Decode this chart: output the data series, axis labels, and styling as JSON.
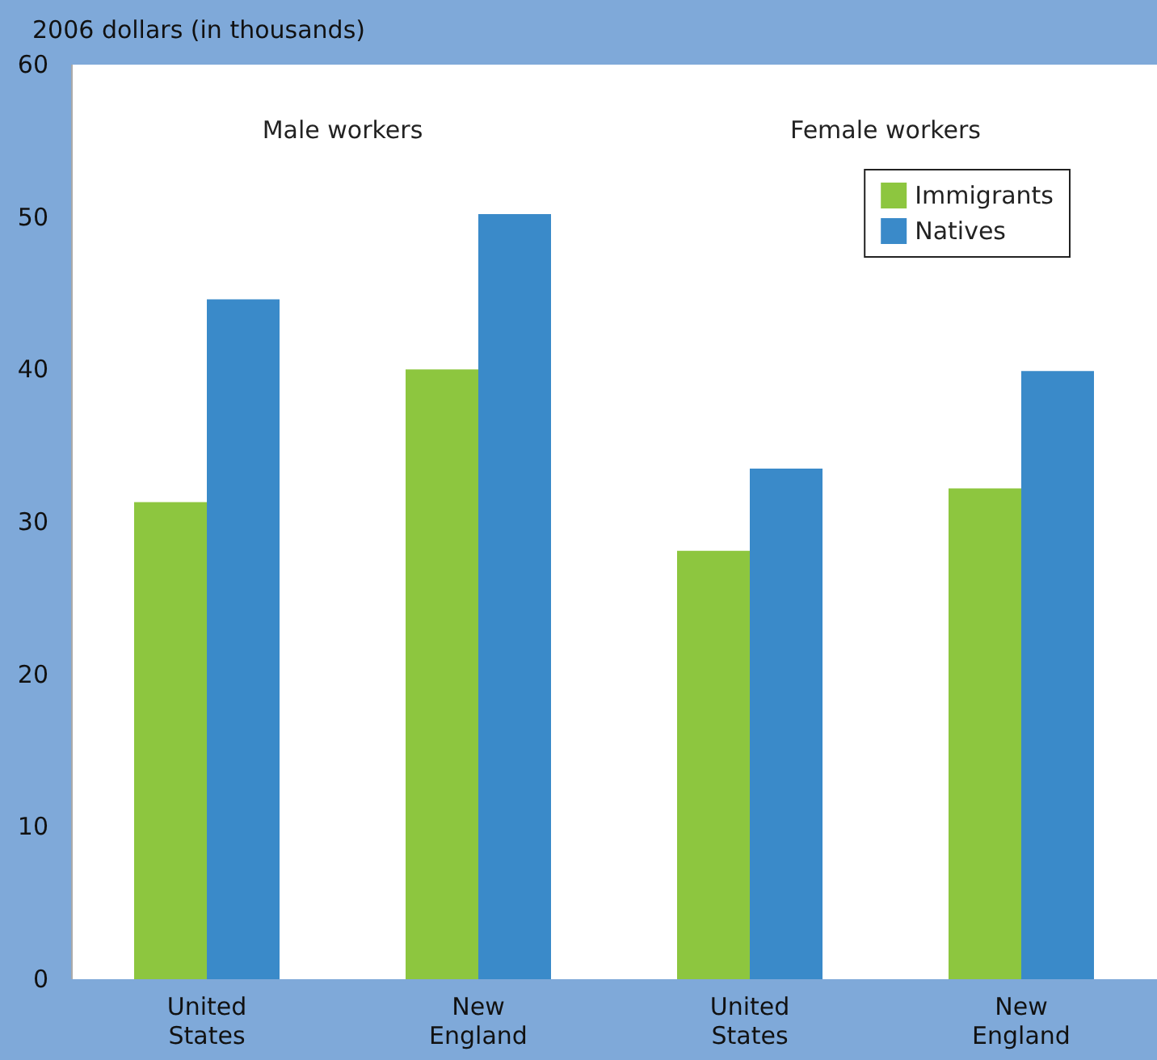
{
  "chart_data": {
    "type": "bar",
    "ylabel": "2006 dollars (in thousands)",
    "categories": [
      "United States",
      "New England",
      "United States",
      "New England"
    ],
    "series": [
      {
        "name": "Immigrants",
        "color": "#8dc63f",
        "values": [
          31.3,
          40.0,
          28.1,
          32.2
        ]
      },
      {
        "name": "Natives",
        "color": "#3a8ac9",
        "values": [
          44.6,
          50.2,
          33.5,
          39.9
        ]
      }
    ],
    "ylim": [
      0,
      60
    ],
    "yticks": [
      0,
      10,
      20,
      30,
      40,
      50,
      60
    ],
    "annotations": [
      "Male workers",
      "Female workers"
    ],
    "legend": "top right",
    "grid": false
  }
}
